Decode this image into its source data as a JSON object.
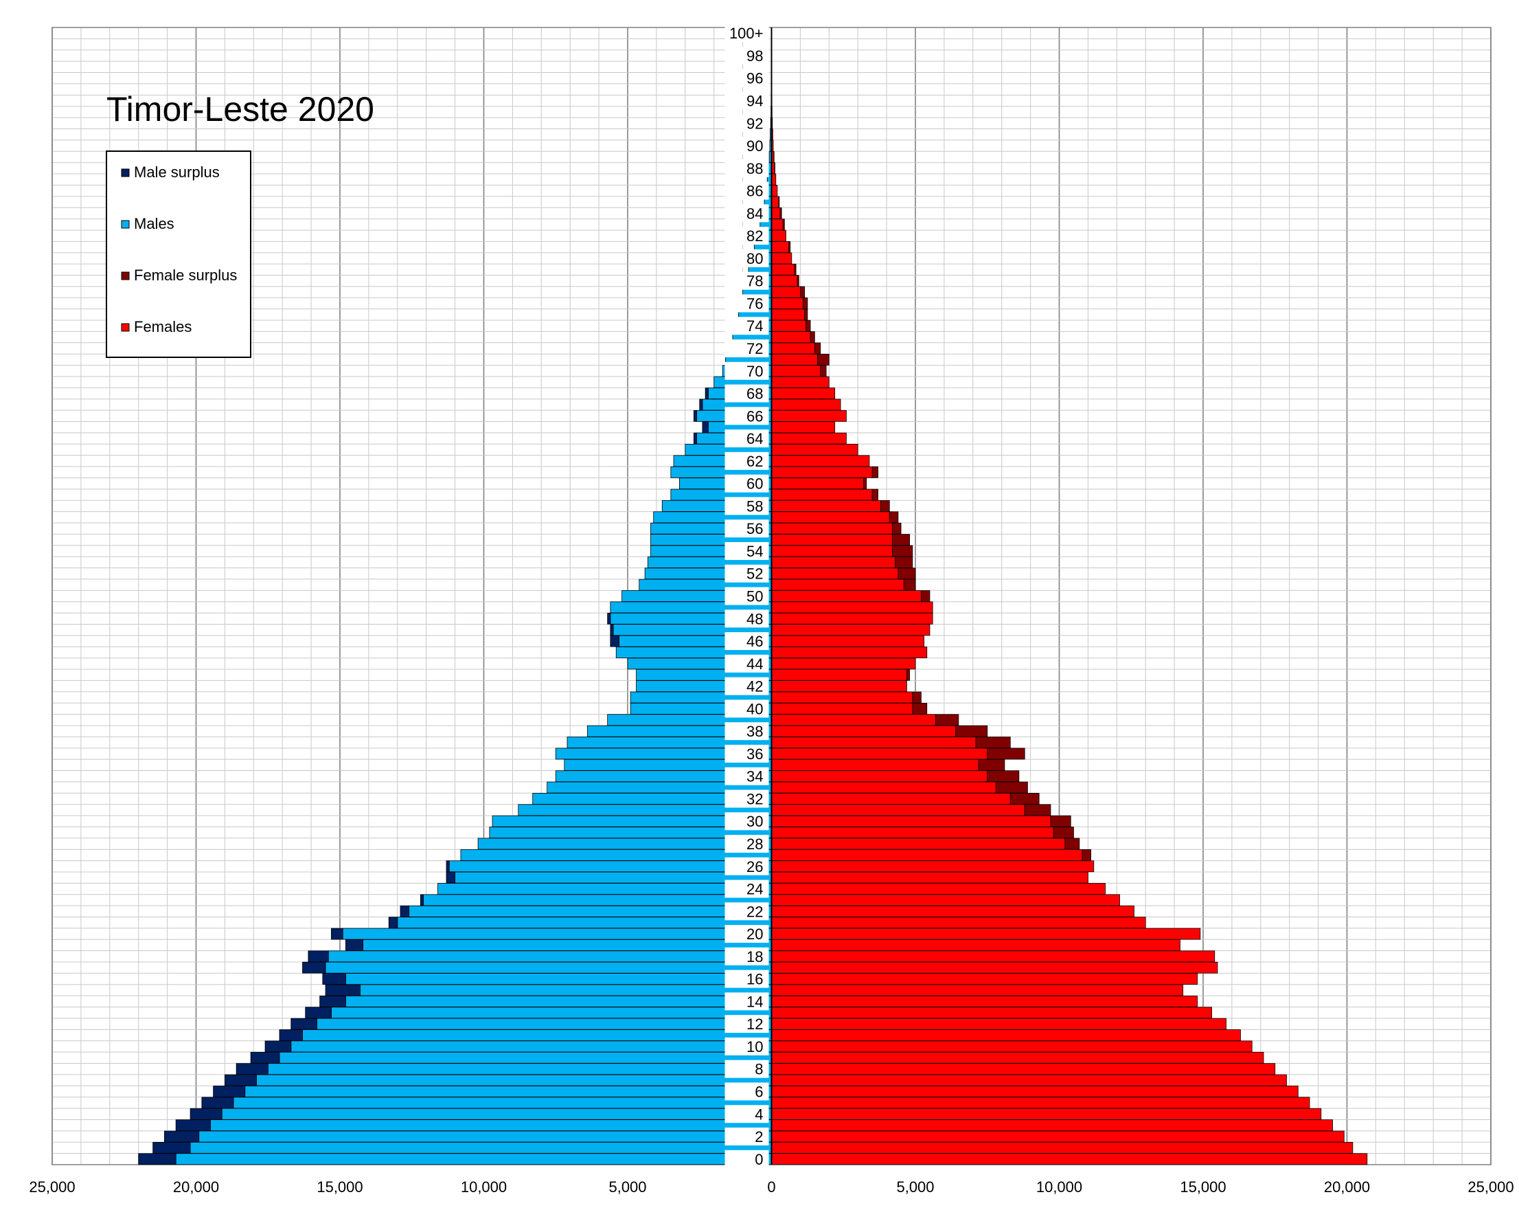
{
  "chart_data": {
    "type": "bar",
    "title": "Timor-Leste 2020",
    "orientation": "horizontal-population-pyramid",
    "xlim": [
      -25000,
      25000
    ],
    "x_ticks": [
      -25000,
      -20000,
      -15000,
      -10000,
      -5000,
      0,
      5000,
      10000,
      15000,
      20000,
      25000
    ],
    "x_tick_labels": [
      "25,000",
      "20,000",
      "15,000",
      "10,000",
      "5,000",
      "0",
      "5,000",
      "10,000",
      "15,000",
      "20,000",
      "25,000"
    ],
    "y_tick_labels": [
      "0",
      "2",
      "4",
      "6",
      "8",
      "10",
      "12",
      "14",
      "16",
      "18",
      "20",
      "22",
      "24",
      "26",
      "28",
      "30",
      "32",
      "34",
      "36",
      "38",
      "40",
      "42",
      "44",
      "46",
      "48",
      "50",
      "52",
      "54",
      "56",
      "58",
      "60",
      "62",
      "64",
      "66",
      "68",
      "70",
      "72",
      "74",
      "76",
      "78",
      "80",
      "82",
      "84",
      "86",
      "88",
      "90",
      "92",
      "94",
      "96",
      "98",
      "100+"
    ],
    "grid": true,
    "legend_position": "top-left",
    "legend": [
      {
        "label": "Male surplus",
        "color": "#002060"
      },
      {
        "label": "Males",
        "color": "#00b0f0"
      },
      {
        "label": "Female surplus",
        "color": "#800000"
      },
      {
        "label": "Females",
        "color": "#ff0000"
      }
    ],
    "categories": [
      "0",
      "1",
      "2",
      "3",
      "4",
      "5",
      "6",
      "7",
      "8",
      "9",
      "10",
      "11",
      "12",
      "13",
      "14",
      "15",
      "16",
      "17",
      "18",
      "19",
      "20",
      "21",
      "22",
      "23",
      "24",
      "25",
      "26",
      "27",
      "28",
      "29",
      "30",
      "31",
      "32",
      "33",
      "34",
      "35",
      "36",
      "37",
      "38",
      "39",
      "40",
      "41",
      "42",
      "43",
      "44",
      "45",
      "46",
      "47",
      "48",
      "49",
      "50",
      "51",
      "52",
      "53",
      "54",
      "55",
      "56",
      "57",
      "58",
      "59",
      "60",
      "61",
      "62",
      "63",
      "64",
      "65",
      "66",
      "67",
      "68",
      "69",
      "70",
      "71",
      "72",
      "73",
      "74",
      "75",
      "76",
      "77",
      "78",
      "79",
      "80",
      "81",
      "82",
      "83",
      "84",
      "85",
      "86",
      "87",
      "88",
      "89",
      "90",
      "91",
      "92",
      "93",
      "94",
      "95",
      "96",
      "97",
      "98",
      "99",
      "100+"
    ],
    "series": [
      {
        "name": "Males",
        "values": [
          22000,
          21500,
          21100,
          20700,
          20200,
          19800,
          19400,
          19000,
          18600,
          18100,
          17600,
          17100,
          16700,
          16200,
          15700,
          15500,
          15600,
          16300,
          16100,
          14800,
          15300,
          13300,
          12900,
          12200,
          11600,
          11300,
          11300,
          10800,
          10200,
          9800,
          9700,
          8800,
          8300,
          7800,
          7500,
          7200,
          7500,
          7100,
          6400,
          5700,
          4900,
          4900,
          4700,
          4700,
          5000,
          5400,
          5600,
          5600,
          5700,
          5600,
          5200,
          4600,
          4400,
          4300,
          4200,
          4200,
          4200,
          4100,
          3800,
          3500,
          3200,
          3500,
          3400,
          3000,
          2700,
          2400,
          2700,
          2500,
          2300,
          2000,
          1700,
          1600,
          1500,
          1350,
          1200,
          1150,
          1100,
          1000,
          900,
          800,
          700,
          600,
          500,
          400,
          300,
          250,
          200,
          150,
          110,
          80,
          60,
          45,
          30,
          20,
          15,
          10,
          8,
          6,
          4,
          3,
          2
        ]
      },
      {
        "name": "Females",
        "values": [
          20700,
          20200,
          19900,
          19500,
          19100,
          18700,
          18300,
          17900,
          17500,
          17100,
          16700,
          16300,
          15800,
          15300,
          14800,
          14300,
          14800,
          15500,
          15400,
          14200,
          14900,
          13000,
          12600,
          12100,
          11600,
          11000,
          11200,
          11100,
          10700,
          10500,
          10400,
          9700,
          9300,
          8900,
          8600,
          8100,
          8800,
          8300,
          7500,
          6500,
          5400,
          5200,
          4700,
          4800,
          5000,
          5400,
          5300,
          5500,
          5600,
          5600,
          5500,
          5000,
          5000,
          4900,
          4900,
          4800,
          4500,
          4400,
          4100,
          3700,
          3300,
          3700,
          3400,
          3000,
          2600,
          2200,
          2600,
          2400,
          2200,
          2000,
          1900,
          2000,
          1700,
          1500,
          1350,
          1250,
          1250,
          1150,
          950,
          850,
          700,
          650,
          500,
          450,
          350,
          270,
          200,
          150,
          120,
          90,
          60,
          45,
          30,
          20,
          15,
          10,
          8,
          6,
          4,
          3,
          2
        ]
      }
    ]
  }
}
